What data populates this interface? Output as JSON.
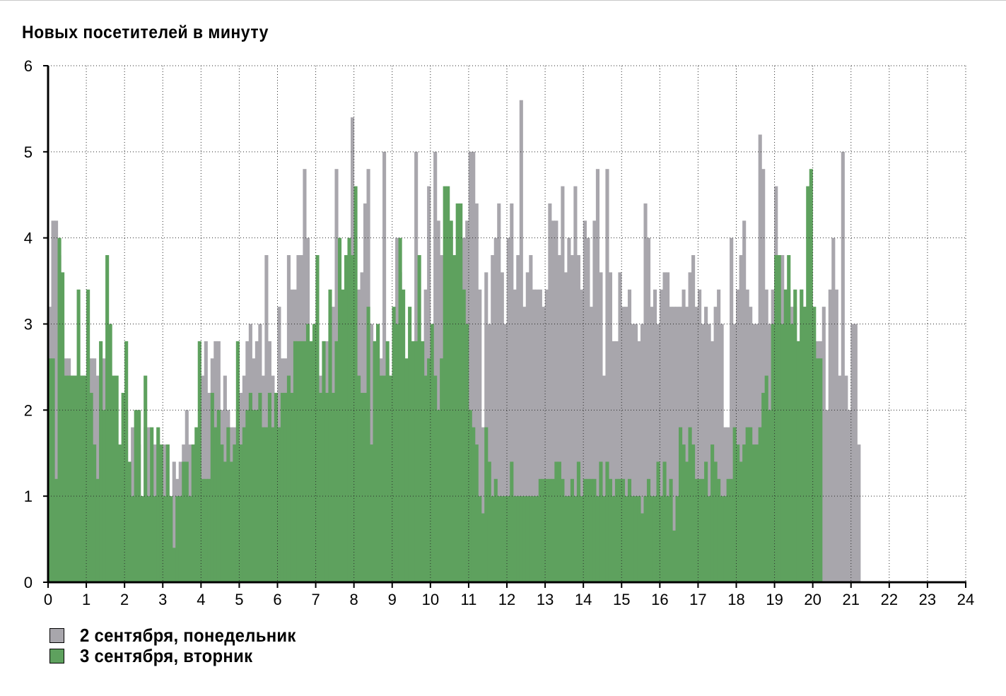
{
  "chart_data": {
    "type": "bar",
    "title": "Новых посетителей в минуту",
    "xlabel": "",
    "ylabel": "",
    "xlim": [
      0,
      24
    ],
    "ylim": [
      0,
      6
    ],
    "x_ticks": [
      "0",
      "1",
      "2",
      "3",
      "4",
      "5",
      "6",
      "7",
      "8",
      "9",
      "10",
      "11",
      "12",
      "13",
      "14",
      "15",
      "16",
      "17",
      "18",
      "19",
      "20",
      "21",
      "22",
      "23",
      "24"
    ],
    "y_ticks": [
      "0",
      "1",
      "2",
      "3",
      "4",
      "5",
      "6"
    ],
    "grid": true,
    "legend_position": "bottom-left",
    "bin_hours": 0.0833,
    "series": [
      {
        "name": "2 сентября, понедельник",
        "color": "#a8a6ac",
        "values": [
          3.2,
          4.2,
          4.2,
          3.8,
          3.0,
          2.6,
          2.6,
          2.4,
          2.4,
          2.4,
          2.4,
          2.4,
          2.4,
          2.6,
          2.6,
          2.4,
          2.2,
          2.6,
          1.8,
          1.8,
          1.6,
          1.6,
          1.2,
          1.2,
          2.0,
          0.6,
          1.8,
          1.8,
          1.6,
          1.0,
          1.8,
          1.8,
          1.6,
          1.6,
          1.6,
          1.4,
          1.6,
          1.6,
          0.8,
          1.4,
          1.2,
          1.4,
          1.6,
          2.0,
          1.6,
          1.6,
          1.6,
          1.6,
          2.4,
          2.8,
          2.2,
          2.6,
          2.8,
          2.8,
          2.0,
          2.4,
          2.0,
          1.8,
          1.8,
          2.0,
          2.2,
          2.4,
          2.8,
          3.0,
          2.6,
          2.8,
          3.0,
          2.4,
          3.8,
          2.8,
          2.4,
          2.2,
          3.2,
          2.6,
          2.6,
          3.8,
          3.4,
          3.4,
          3.8,
          3.8,
          4.8,
          4.0,
          2.4,
          2.2,
          3.0,
          2.4,
          2.8,
          2.8,
          3.0,
          3.2,
          4.8,
          3.4,
          3.2,
          3.2,
          4.0,
          5.4,
          4.0,
          3.4,
          3.6,
          4.4,
          4.8,
          3.0,
          2.8,
          3.0,
          2.6,
          5.0,
          2.6,
          2.4,
          2.8,
          4.0,
          3.6,
          2.2,
          2.4,
          2.2,
          2.4,
          5.0,
          2.2,
          2.4,
          3.4,
          4.6,
          2.8,
          5.0,
          4.2,
          3.8,
          3.4,
          3.6,
          4.0,
          3.2,
          3.8,
          3.2,
          4.0,
          4.2,
          5.0,
          5.0,
          4.4,
          3.4,
          1.8,
          3.6,
          3.0,
          3.8,
          4.0,
          4.4,
          3.6,
          3.0,
          4.0,
          4.4,
          3.4,
          3.8,
          5.6,
          3.2,
          3.6,
          3.8,
          3.4,
          3.4,
          3.4,
          3.2,
          3.4,
          4.4,
          4.2,
          4.2,
          3.8,
          4.6,
          3.6,
          4.0,
          3.8,
          4.6,
          3.8,
          3.4,
          4.2,
          4.0,
          3.2,
          4.2,
          4.8,
          3.6,
          2.4,
          4.8,
          3.6,
          2.8,
          2.8,
          3.6,
          3.2,
          3.2,
          3.4,
          3.0,
          3.0,
          2.8,
          3.0,
          4.4,
          4.0,
          3.2,
          3.4,
          3.0,
          3.4,
          3.6,
          3.6,
          3.2,
          3.2,
          3.2,
          3.2,
          3.4,
          3.2,
          3.6,
          3.8,
          3.2,
          3.4,
          3.0,
          3.2,
          3.0,
          2.8,
          3.2,
          3.4,
          3.0,
          1.8,
          1.8,
          4.0,
          3.0,
          3.4,
          3.8,
          4.2,
          3.4,
          3.2,
          3.0,
          3.0,
          5.2,
          4.8,
          3.4,
          3.0,
          3.4,
          4.6,
          3.8,
          3.8,
          3.4,
          3.4,
          3.2,
          3.2,
          2.8,
          3.4,
          3.2,
          2.8,
          2.8,
          2.8,
          2.8,
          2.8,
          3.2,
          2.0,
          3.4,
          4.0,
          3.4,
          2.4,
          5.0,
          2.4,
          2.0,
          3.0,
          3.0,
          1.6
        ]
      },
      {
        "name": "3 сентября, вторник",
        "color": "#5ea15e",
        "values": [
          2.6,
          2.6,
          1.2,
          4.0,
          3.6,
          2.4,
          2.4,
          2.4,
          2.4,
          3.4,
          2.4,
          2.4,
          3.4,
          2.2,
          1.6,
          1.2,
          2.8,
          2.0,
          3.8,
          3.0,
          2.4,
          2.4,
          1.6,
          2.2,
          2.8,
          1.4,
          1.0,
          2.0,
          2.0,
          1.0,
          2.4,
          1.0,
          1.8,
          1.0,
          1.8,
          1.6,
          1.0,
          1.6,
          1.0,
          0.4,
          1.0,
          1.0,
          1.4,
          1.4,
          1.0,
          1.6,
          1.8,
          2.8,
          1.2,
          1.2,
          1.2,
          2.2,
          1.8,
          2.0,
          1.6,
          1.4,
          1.8,
          1.4,
          1.6,
          2.8,
          1.6,
          1.8,
          2.0,
          2.2,
          2.0,
          2.0,
          2.2,
          1.8,
          1.8,
          2.2,
          1.8,
          2.2,
          1.8,
          2.2,
          2.2,
          2.4,
          2.2,
          2.8,
          2.8,
          2.8,
          2.8,
          3.0,
          2.8,
          3.0,
          3.8,
          2.2,
          2.8,
          2.2,
          3.4,
          2.2,
          2.8,
          4.0,
          3.4,
          3.8,
          4.0,
          3.8,
          4.6,
          2.4,
          2.2,
          2.2,
          3.2,
          1.6,
          2.8,
          3.0,
          2.4,
          2.4,
          2.8,
          2.4,
          3.2,
          3.0,
          4.0,
          3.4,
          2.6,
          3.2,
          2.8,
          2.8,
          3.8,
          2.8,
          2.4,
          2.6,
          3.0,
          2.4,
          2.0,
          2.6,
          4.6,
          4.6,
          4.2,
          3.8,
          4.4,
          4.4,
          3.4,
          3.0,
          2.0,
          1.8,
          1.6,
          1.0,
          0.8,
          1.8,
          1.4,
          1.0,
          1.2,
          1.0,
          1.0,
          1.0,
          1.0,
          1.4,
          1.0,
          1.0,
          1.0,
          1.0,
          1.0,
          1.0,
          1.0,
          1.0,
          1.2,
          1.2,
          1.2,
          1.2,
          1.2,
          1.4,
          1.4,
          1.2,
          1.0,
          1.0,
          1.2,
          1.0,
          1.4,
          1.0,
          1.2,
          1.2,
          1.2,
          1.2,
          1.0,
          1.4,
          1.0,
          1.4,
          1.2,
          1.0,
          1.2,
          1.2,
          1.2,
          1.0,
          1.2,
          1.0,
          1.0,
          1.0,
          0.8,
          1.0,
          1.2,
          1.0,
          1.0,
          1.4,
          1.0,
          1.4,
          1.0,
          1.2,
          0.6,
          1.0,
          1.8,
          1.6,
          1.4,
          1.8,
          1.6,
          1.2,
          1.2,
          1.2,
          1.4,
          1.0,
          1.6,
          1.4,
          1.2,
          1.0,
          1.0,
          1.2,
          1.2,
          1.8,
          1.6,
          1.4,
          1.6,
          1.8,
          1.8,
          1.6,
          1.6,
          1.8,
          2.2,
          2.4,
          2.0,
          3.0,
          3.8,
          3.8,
          3.0,
          3.4,
          3.8,
          3.0,
          3.4,
          2.8,
          3.4,
          3.2,
          4.6,
          4.8,
          3.2,
          2.6,
          2.6
        ]
      }
    ]
  },
  "legend": [
    {
      "label": "2 сентября, понедельник",
      "color": "#a8a6ac"
    },
    {
      "label": "3 сентября, вторник",
      "color": "#5ea15e"
    }
  ]
}
